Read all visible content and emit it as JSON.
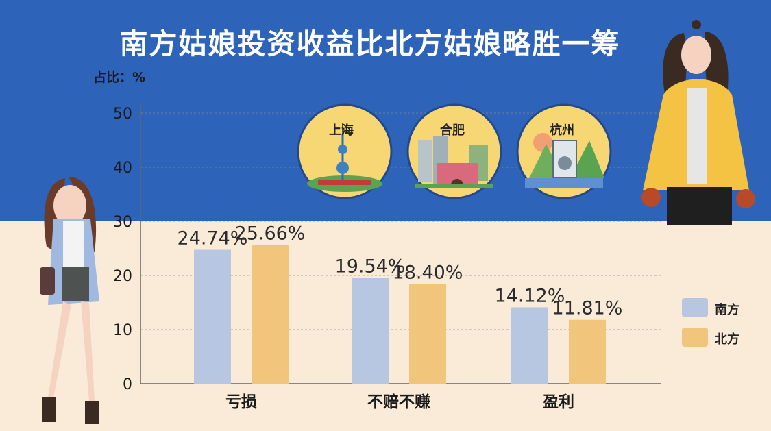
{
  "header": {
    "title": "南方姑娘投资收益比北方姑娘略胜一筹",
    "unit_label": "占比：%"
  },
  "cities": [
    "上海",
    "合肥",
    "杭州"
  ],
  "colors": {
    "south": "#b7c6e1",
    "north": "#f2c57c",
    "bg_top": "#2d63b8",
    "bg_bottom": "#f9ebd8"
  },
  "chart_data": {
    "type": "bar",
    "categories": [
      "亏损",
      "不赔不赚",
      "盈利"
    ],
    "series": [
      {
        "name": "南方",
        "values": [
          24.74,
          19.54,
          14.12
        ],
        "labels": [
          "24.74%",
          "19.54%",
          "14.12%"
        ]
      },
      {
        "name": "北方",
        "values": [
          25.66,
          18.4,
          11.81
        ],
        "labels": [
          "25.66%",
          "18.40%",
          "11.81%"
        ]
      }
    ],
    "ylim": [
      0,
      50
    ],
    "yticks": [
      "0",
      "10",
      "20",
      "30",
      "40",
      "50"
    ],
    "grid": true,
    "legend_position": "right"
  }
}
